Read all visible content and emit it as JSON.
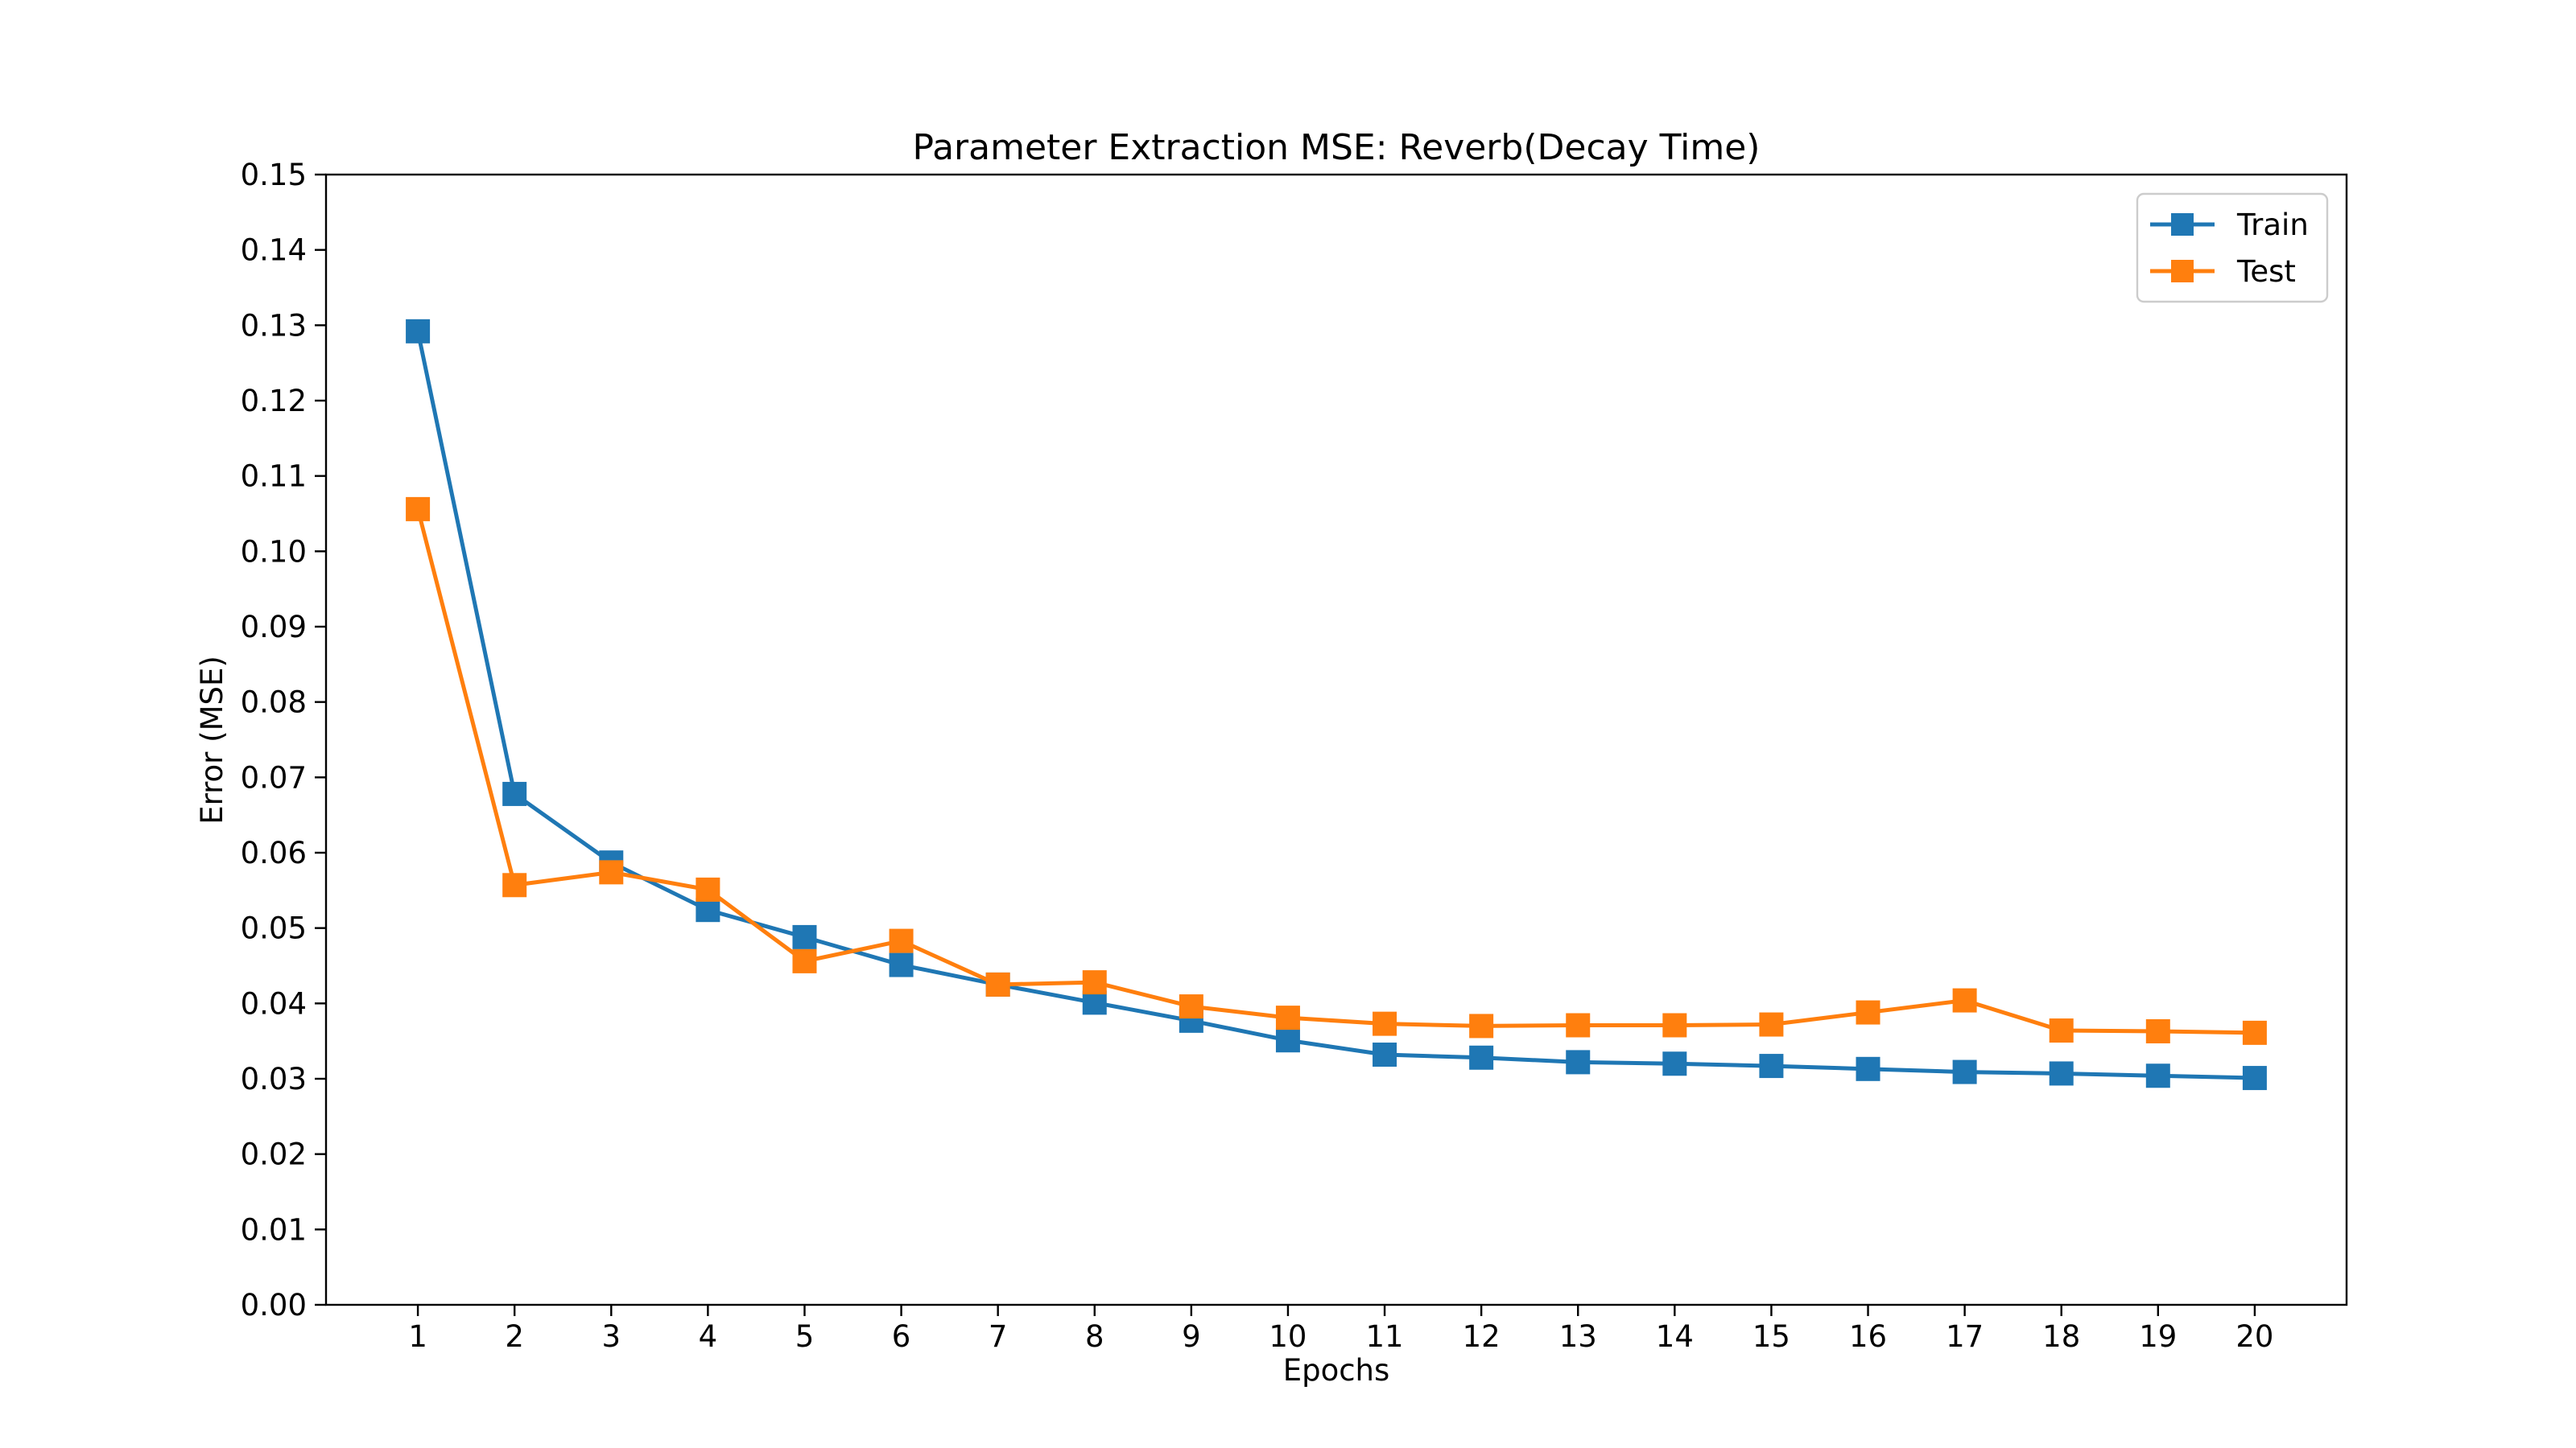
{
  "chart_data": {
    "type": "line",
    "title": "Parameter Extraction MSE: Reverb(Decay Time)",
    "xlabel": "Epochs",
    "ylabel": "Error (MSE)",
    "x": [
      1,
      2,
      3,
      4,
      5,
      6,
      7,
      8,
      9,
      10,
      11,
      12,
      13,
      14,
      15,
      16,
      17,
      18,
      19,
      20
    ],
    "xlim": [
      0.05,
      20.95
    ],
    "ylim": [
      0.0,
      0.15
    ],
    "yticks": [
      "0.00",
      "0.01",
      "0.02",
      "0.03",
      "0.04",
      "0.05",
      "0.06",
      "0.07",
      "0.08",
      "0.09",
      "0.10",
      "0.11",
      "0.12",
      "0.13",
      "0.14",
      "0.15"
    ],
    "grid": false,
    "legend_position": "top-right",
    "marker": "square",
    "series": [
      {
        "name": "Train",
        "color": "#1f77b4",
        "values": [
          0.1292,
          0.0678,
          0.0587,
          0.0524,
          0.0488,
          0.0451,
          0.0425,
          0.0401,
          0.0377,
          0.0351,
          0.0332,
          0.0328,
          0.0322,
          0.032,
          0.0317,
          0.0313,
          0.0309,
          0.0307,
          0.0304,
          0.0301
        ]
      },
      {
        "name": "Test",
        "color": "#ff7f0e",
        "values": [
          0.1056,
          0.0557,
          0.0574,
          0.0551,
          0.0456,
          0.0483,
          0.0425,
          0.0428,
          0.0396,
          0.0381,
          0.0373,
          0.037,
          0.0371,
          0.0371,
          0.0372,
          0.0388,
          0.0404,
          0.0364,
          0.0363,
          0.0361
        ]
      }
    ]
  }
}
